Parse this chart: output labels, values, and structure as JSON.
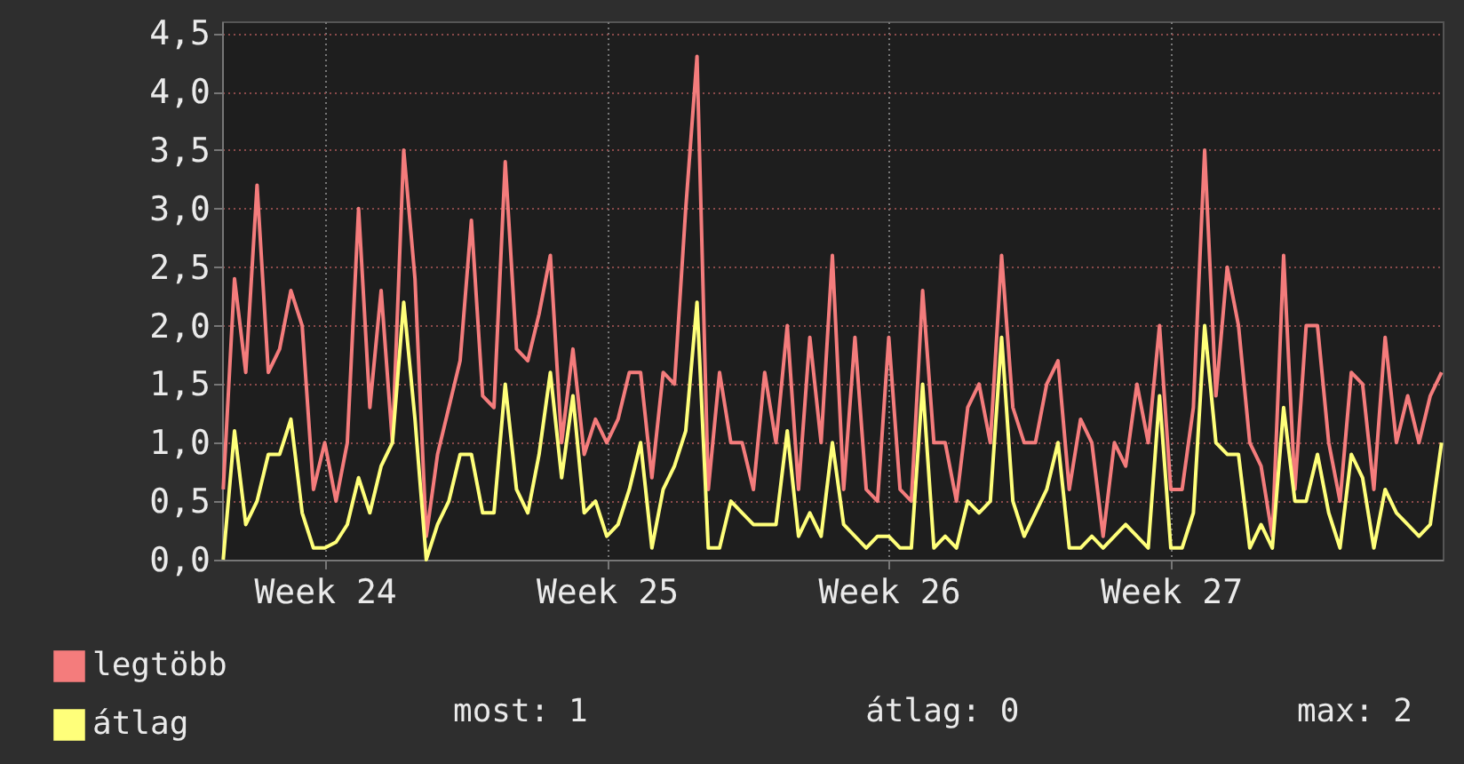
{
  "chart_data": {
    "type": "line",
    "categories": [
      null,
      null,
      null,
      null,
      null,
      null,
      null,
      null,
      null,
      "Week 24",
      null,
      null,
      null,
      null,
      null,
      null,
      null,
      null,
      null,
      null,
      null,
      null,
      null,
      null,
      null,
      null,
      null,
      null,
      null,
      null,
      null,
      null,
      null,
      null,
      "Week 25",
      null,
      null,
      null,
      null,
      null,
      null,
      null,
      null,
      null,
      null,
      null,
      null,
      null,
      null,
      null,
      null,
      null,
      null,
      null,
      null,
      null,
      null,
      null,
      null,
      "Week 26",
      null,
      null,
      null,
      null,
      null,
      null,
      null,
      null,
      null,
      null,
      null,
      null,
      null,
      null,
      null,
      null,
      null,
      null,
      null,
      null,
      null,
      null,
      null,
      null,
      "Week 27",
      null,
      null,
      null,
      null,
      null,
      null,
      null,
      null,
      null,
      null,
      null,
      null,
      null,
      null,
      null,
      null,
      null,
      null,
      null,
      null,
      null,
      null,
      null,
      null
    ],
    "series": [
      {
        "name": "legtöbb",
        "color": "#f47c7c",
        "values": [
          0.6,
          2.4,
          1.6,
          3.2,
          1.6,
          1.8,
          2.3,
          2.0,
          0.6,
          1.0,
          0.5,
          1.0,
          3.0,
          1.3,
          2.3,
          1.0,
          3.5,
          2.4,
          0.2,
          0.9,
          1.3,
          1.7,
          2.9,
          1.4,
          1.3,
          3.4,
          1.8,
          1.7,
          2.1,
          2.6,
          1.0,
          1.8,
          0.9,
          1.2,
          1.0,
          1.2,
          1.6,
          1.6,
          0.7,
          1.6,
          1.5,
          3.0,
          4.3,
          0.6,
          1.6,
          1.0,
          1.0,
          0.6,
          1.6,
          1.0,
          2.0,
          0.6,
          1.9,
          1.0,
          2.6,
          0.6,
          1.9,
          0.6,
          0.5,
          1.9,
          0.6,
          0.5,
          2.3,
          1.0,
          1.0,
          0.5,
          1.3,
          1.5,
          1.0,
          2.6,
          1.3,
          1.0,
          1.0,
          1.5,
          1.7,
          0.6,
          1.2,
          1.0,
          0.2,
          1.0,
          0.8,
          1.5,
          1.0,
          2.0,
          0.6,
          0.6,
          1.3,
          3.5,
          1.4,
          2.5,
          2.0,
          1.0,
          0.8,
          0.2,
          2.6,
          0.6,
          2.0,
          2.0,
          1.0,
          0.5,
          1.6,
          1.5,
          0.6,
          1.9,
          1.0,
          1.4,
          1.0,
          1.4,
          1.6
        ]
      },
      {
        "name": "átlag",
        "color": "#ffff7a",
        "values": [
          0.0,
          1.1,
          0.3,
          0.5,
          0.9,
          0.9,
          1.2,
          0.4,
          0.1,
          0.1,
          0.15,
          0.3,
          0.7,
          0.4,
          0.8,
          1.0,
          2.2,
          1.2,
          0.0,
          0.3,
          0.5,
          0.9,
          0.9,
          0.4,
          0.4,
          1.5,
          0.6,
          0.4,
          0.9,
          1.6,
          0.7,
          1.4,
          0.4,
          0.5,
          0.2,
          0.3,
          0.6,
          1.0,
          0.1,
          0.6,
          0.8,
          1.1,
          2.2,
          0.1,
          0.1,
          0.5,
          0.4,
          0.3,
          0.3,
          0.3,
          1.1,
          0.2,
          0.4,
          0.2,
          1.0,
          0.3,
          0.2,
          0.1,
          0.2,
          0.2,
          0.1,
          0.1,
          1.5,
          0.1,
          0.2,
          0.1,
          0.5,
          0.4,
          0.5,
          1.9,
          0.5,
          0.2,
          0.4,
          0.6,
          1.0,
          0.1,
          0.1,
          0.2,
          0.1,
          0.2,
          0.3,
          0.2,
          0.1,
          1.4,
          0.1,
          0.1,
          0.4,
          2.0,
          1.0,
          0.9,
          0.9,
          0.1,
          0.3,
          0.1,
          1.3,
          0.5,
          0.5,
          0.9,
          0.4,
          0.1,
          0.9,
          0.7,
          0.1,
          0.6,
          0.4,
          0.3,
          0.2,
          0.3,
          1.0
        ]
      }
    ],
    "ylim": [
      0,
      4.6
    ],
    "yticks": [
      {
        "value": 0,
        "label": "0,0"
      },
      {
        "value": 0.5,
        "label": "0,5"
      },
      {
        "value": 1,
        "label": "1,0"
      },
      {
        "value": 1.5,
        "label": "1,5"
      },
      {
        "value": 2,
        "label": "2,0"
      },
      {
        "value": 2.5,
        "label": "2,5"
      },
      {
        "value": 3,
        "label": "3,0"
      },
      {
        "value": 3.5,
        "label": "3,5"
      },
      {
        "value": 4,
        "label": "4,0"
      },
      {
        "value": 4.5,
        "label": "4,5"
      }
    ],
    "grid": true,
    "legend": "bottom left",
    "marker": "none",
    "line_style": "solid",
    "annotations": [
      "most: 1",
      "átlag: 0",
      "max: 2"
    ]
  }
}
